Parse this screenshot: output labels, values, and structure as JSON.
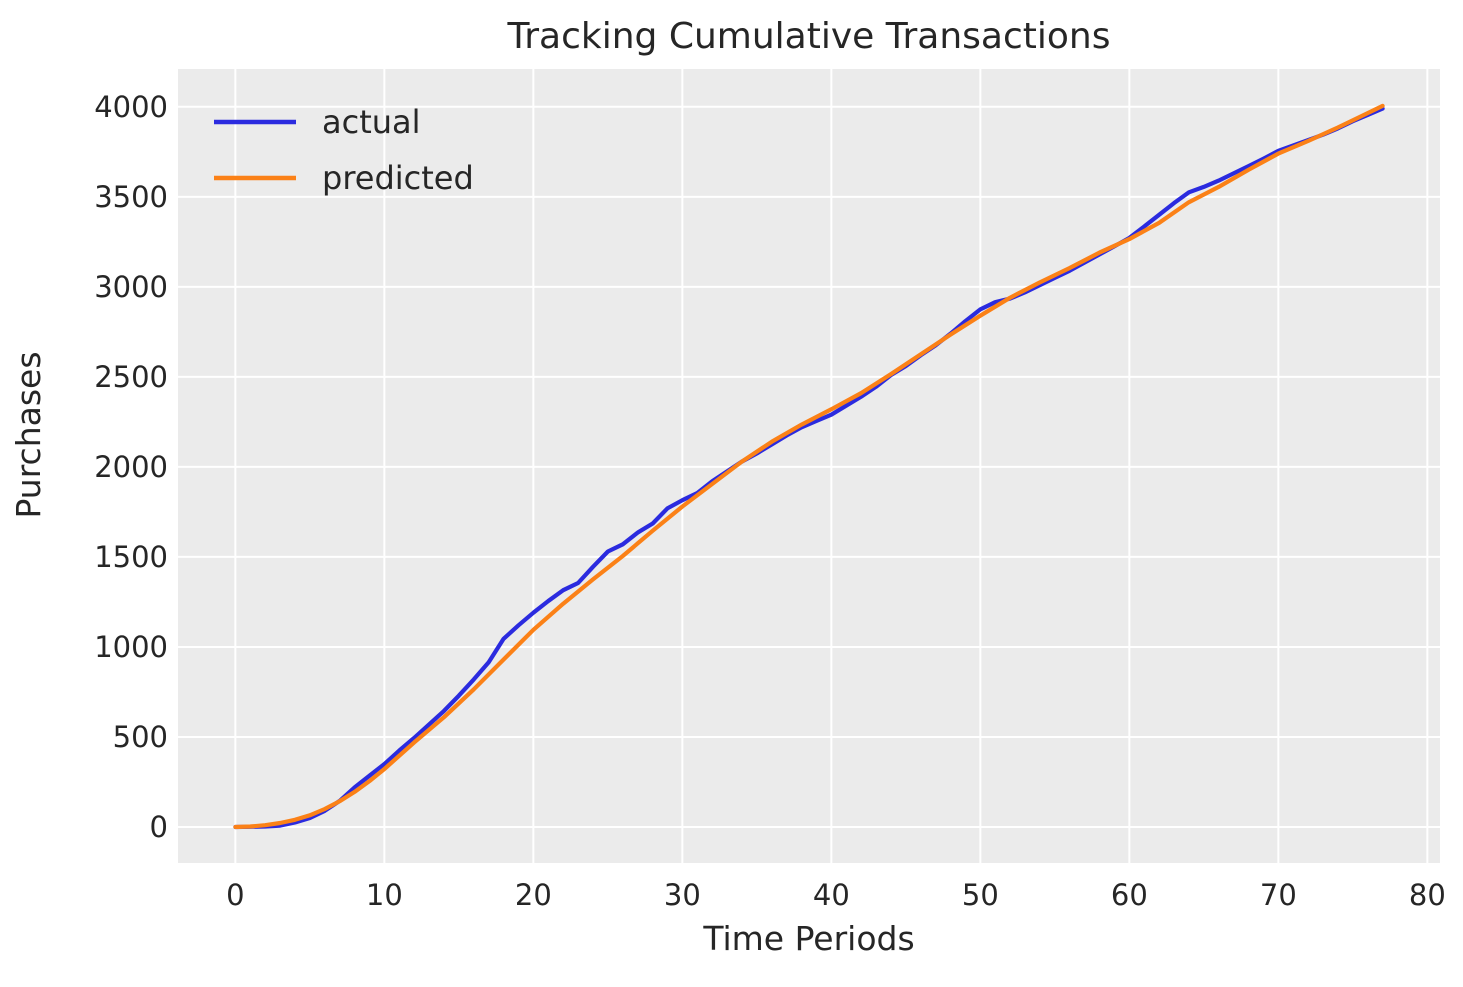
{
  "figure": {
    "background": "#ffffff",
    "plot_background": "#ebebeb",
    "grid_color": "#ffffff",
    "text_color": "#262626"
  },
  "chart_data": {
    "type": "line",
    "title": "Tracking Cumulative Transactions",
    "xlabel": "Time Periods",
    "ylabel": "Purchases",
    "xlim": [
      -3.85,
      80.85
    ],
    "ylim": [
      -200,
      4210
    ],
    "x_ticks": [
      0,
      10,
      20,
      30,
      40,
      50,
      60,
      70,
      80
    ],
    "y_ticks": [
      0,
      500,
      1000,
      1500,
      2000,
      2500,
      3000,
      3500,
      4000
    ],
    "grid": true,
    "legend_position": "upper left",
    "series": [
      {
        "name": "actual",
        "color": "#2b2bdf",
        "x": [
          0,
          1,
          2,
          3,
          4,
          5,
          6,
          7,
          8,
          9,
          10,
          11,
          12,
          13,
          14,
          15,
          16,
          17,
          18,
          19,
          20,
          21,
          22,
          23,
          24,
          25,
          26,
          27,
          28,
          29,
          30,
          31,
          32,
          33,
          34,
          35,
          36,
          37,
          38,
          39,
          40,
          41,
          42,
          43,
          44,
          45,
          46,
          47,
          48,
          49,
          50,
          51,
          52,
          53,
          54,
          55,
          56,
          57,
          58,
          59,
          60,
          61,
          62,
          63,
          64,
          65,
          66,
          67,
          68,
          69,
          70,
          71,
          72,
          73,
          74,
          75,
          76,
          77
        ],
        "values": [
          0,
          1,
          3,
          8,
          25,
          50,
          90,
          145,
          220,
          285,
          350,
          425,
          495,
          570,
          645,
          730,
          820,
          915,
          1045,
          1120,
          1190,
          1255,
          1315,
          1355,
          1445,
          1530,
          1570,
          1635,
          1685,
          1770,
          1815,
          1855,
          1920,
          1975,
          2030,
          2075,
          2125,
          2175,
          2220,
          2255,
          2290,
          2340,
          2390,
          2445,
          2510,
          2560,
          2620,
          2675,
          2740,
          2810,
          2875,
          2915,
          2935,
          2970,
          3010,
          3050,
          3090,
          3135,
          3180,
          3225,
          3272,
          3335,
          3400,
          3465,
          3525,
          3555,
          3590,
          3630,
          3670,
          3712,
          3755,
          3785,
          3815,
          3845,
          3880,
          3920,
          3955,
          3990
        ]
      },
      {
        "name": "predicted",
        "color": "#fb8117",
        "x": [
          0,
          1,
          2,
          3,
          4,
          5,
          6,
          7,
          8,
          9,
          10,
          12,
          14,
          16,
          18,
          20,
          22,
          24,
          26,
          28,
          30,
          32,
          34,
          36,
          38,
          40,
          42,
          44,
          46,
          48,
          50,
          52,
          54,
          56,
          58,
          60,
          62,
          64,
          66,
          68,
          70,
          72,
          74,
          76,
          77
        ],
        "values": [
          0,
          3,
          10,
          22,
          40,
          65,
          100,
          143,
          195,
          255,
          322,
          470,
          610,
          765,
          930,
          1095,
          1240,
          1375,
          1505,
          1645,
          1780,
          1905,
          2030,
          2140,
          2235,
          2320,
          2410,
          2515,
          2625,
          2735,
          2840,
          2940,
          3025,
          3105,
          3190,
          3265,
          3355,
          3470,
          3555,
          3650,
          3740,
          3810,
          3885,
          3965,
          4005
        ]
      }
    ]
  }
}
